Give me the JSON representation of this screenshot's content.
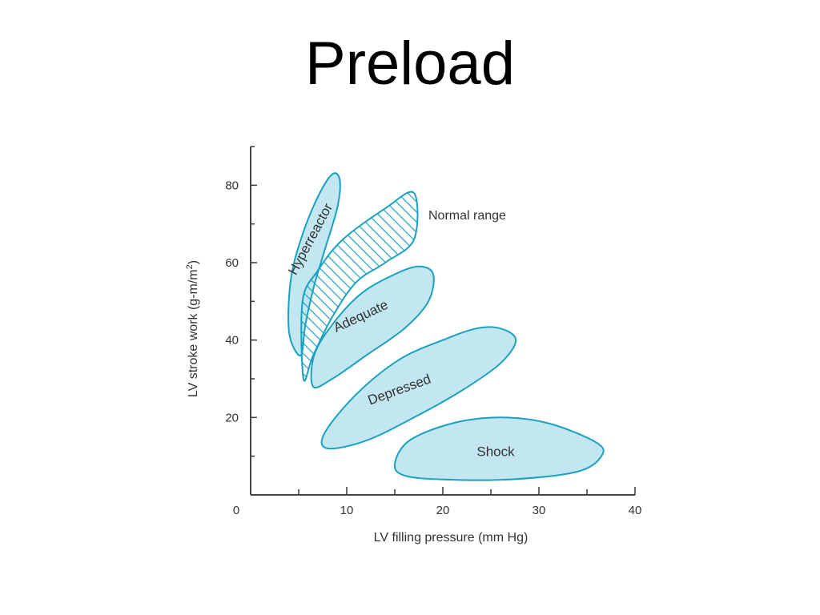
{
  "slide": {
    "title": "Preload"
  },
  "colors": {
    "region_fill": "#bfe6f0",
    "region_stroke": "#1aa1c0",
    "axis": "#444444",
    "text": "#333333"
  },
  "chart_data": {
    "type": "scatter",
    "xlabel": "LV filling pressure (mm Hg)",
    "ylabel_main": "LV stroke work (g-m/m",
    "ylabel_sup": "2",
    "ylabel_tail": ")",
    "xlim": [
      0,
      40
    ],
    "ylim": [
      0,
      90
    ],
    "xticks": [
      0,
      10,
      20,
      30,
      40
    ],
    "yticks": [
      20,
      40,
      60,
      80
    ],
    "regions": [
      {
        "name": "Hyperreactor",
        "fill": "solid",
        "polygon": [
          [
            5.2,
            36
          ],
          [
            4.0,
            42
          ],
          [
            4.2,
            56
          ],
          [
            5.5,
            68
          ],
          [
            7.2,
            78
          ],
          [
            8.6,
            83
          ],
          [
            9.3,
            81
          ],
          [
            9.0,
            74
          ],
          [
            7.8,
            64
          ],
          [
            6.6,
            54
          ],
          [
            5.7,
            44
          ]
        ]
      },
      {
        "name": "Normal range",
        "fill": "hatched",
        "polygon": [
          [
            5.5,
            30
          ],
          [
            5.4,
            50
          ],
          [
            7.0,
            58
          ],
          [
            9.6,
            66
          ],
          [
            14.0,
            74
          ],
          [
            17.0,
            78
          ],
          [
            17.0,
            66
          ],
          [
            14.0,
            60
          ],
          [
            11.0,
            55
          ],
          [
            8.5,
            46
          ],
          [
            6.5,
            36
          ]
        ]
      },
      {
        "name": "Adequate",
        "fill": "solid",
        "polygon": [
          [
            6.5,
            28
          ],
          [
            6.6,
            36
          ],
          [
            8.5,
            44
          ],
          [
            11.5,
            52
          ],
          [
            15.0,
            57
          ],
          [
            17.5,
            59
          ],
          [
            19.0,
            57
          ],
          [
            18.5,
            50
          ],
          [
            16.0,
            43
          ],
          [
            12.0,
            36
          ],
          [
            8.5,
            30
          ]
        ]
      },
      {
        "name": "Depressed",
        "fill": "solid",
        "polygon": [
          [
            8.0,
            12
          ],
          [
            7.7,
            16
          ],
          [
            11.0,
            26
          ],
          [
            15.5,
            35
          ],
          [
            20.0,
            40
          ],
          [
            23.5,
            43
          ],
          [
            26.0,
            43
          ],
          [
            27.6,
            40
          ],
          [
            26.0,
            34
          ],
          [
            22.0,
            27
          ],
          [
            17.0,
            20
          ],
          [
            12.0,
            14
          ]
        ]
      },
      {
        "name": "Shock",
        "fill": "solid",
        "polygon": [
          [
            16.0,
            5
          ],
          [
            15.0,
            8
          ],
          [
            16.5,
            14
          ],
          [
            21.0,
            18.5
          ],
          [
            26.0,
            20
          ],
          [
            31.0,
            18.5
          ],
          [
            36.0,
            13.5
          ],
          [
            36.5,
            10
          ],
          [
            34.0,
            6
          ],
          [
            27.0,
            4
          ],
          [
            20.0,
            4
          ]
        ]
      }
    ],
    "labels": [
      {
        "text": "Hyperreactor",
        "at": [
          6.3,
          66
        ],
        "angle": -62
      },
      {
        "text": "Normal range",
        "at": [
          24.0,
          72.5
        ],
        "angle": 0
      },
      {
        "text": "Adequate",
        "at": [
          11.5,
          46
        ],
        "angle": -25
      },
      {
        "text": "Depressed",
        "at": [
          15.5,
          27
        ],
        "angle": -20
      },
      {
        "text": "Shock",
        "at": [
          25.5,
          11
        ],
        "angle": 0
      }
    ],
    "callout": {
      "text": "Normal range",
      "at": [
        18.5,
        72
      ]
    },
    "grid": false,
    "legend": "none"
  }
}
